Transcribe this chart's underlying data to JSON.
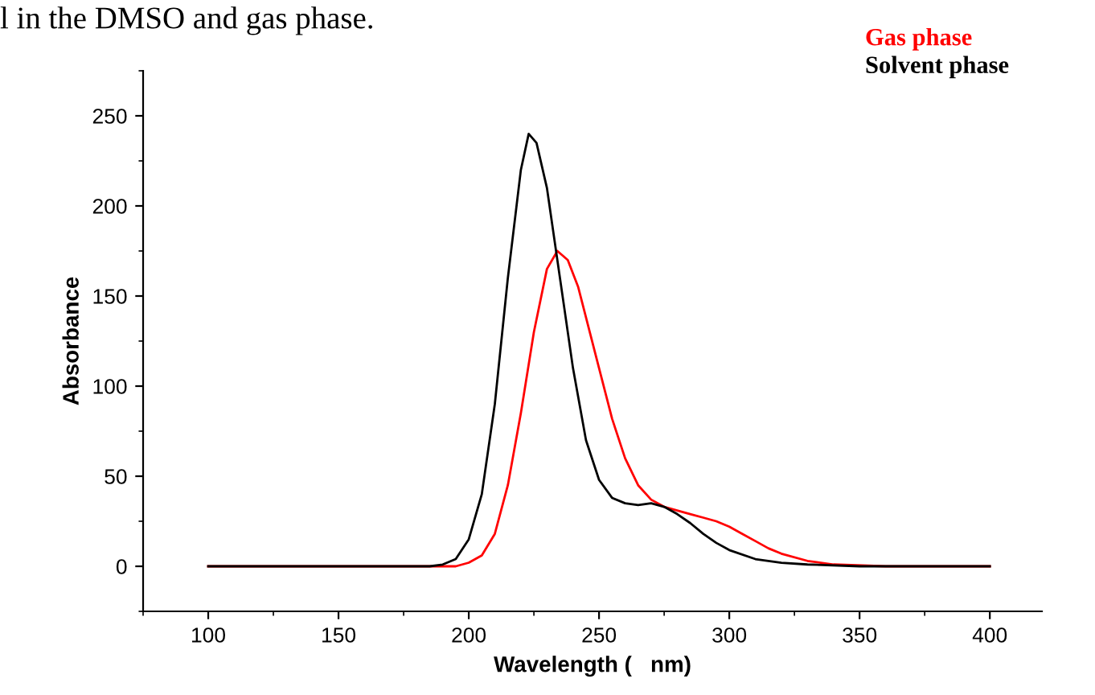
{
  "chart_data": {
    "type": "line",
    "xlabel": "Wavelength (   nm)",
    "ylabel": "Absorbance",
    "annotations": [
      "l in the DMSO and gas phase."
    ],
    "xlim": [
      75,
      420
    ],
    "ylim": [
      -25,
      275
    ],
    "xticks": [
      100,
      150,
      200,
      250,
      300,
      350,
      400
    ],
    "yticks": [
      0,
      50,
      100,
      150,
      200,
      250
    ],
    "grid": false,
    "legend": "top right",
    "marker": "none",
    "line_style": "solid",
    "series": [
      {
        "name": "Gas phase",
        "color": "#ff0000",
        "x": [
          100,
          150,
          195,
          200,
          205,
          210,
          215,
          220,
          225,
          230,
          234,
          238,
          242,
          250,
          255,
          260,
          265,
          270,
          275,
          280,
          285,
          290,
          295,
          300,
          305,
          310,
          315,
          320,
          330,
          340,
          360,
          400
        ],
        "values": [
          0,
          0,
          0,
          2,
          6,
          18,
          45,
          85,
          130,
          165,
          175,
          170,
          155,
          110,
          82,
          60,
          45,
          37,
          33,
          31,
          29,
          27,
          25,
          22,
          18,
          14,
          10,
          7,
          3,
          1,
          0,
          0
        ]
      },
      {
        "name": "Solvent phase",
        "color": "#000000",
        "x": [
          100,
          150,
          185,
          190,
          195,
          200,
          205,
          210,
          215,
          220,
          223,
          226,
          230,
          235,
          240,
          245,
          250,
          255,
          260,
          265,
          270,
          275,
          280,
          285,
          290,
          295,
          300,
          310,
          320,
          330,
          350,
          400
        ],
        "values": [
          0,
          0,
          0,
          1,
          4,
          15,
          40,
          90,
          160,
          220,
          240,
          235,
          210,
          160,
          110,
          70,
          48,
          38,
          35,
          34,
          35,
          33,
          29,
          24,
          18,
          13,
          9,
          4,
          2,
          1,
          0,
          0
        ]
      }
    ]
  }
}
